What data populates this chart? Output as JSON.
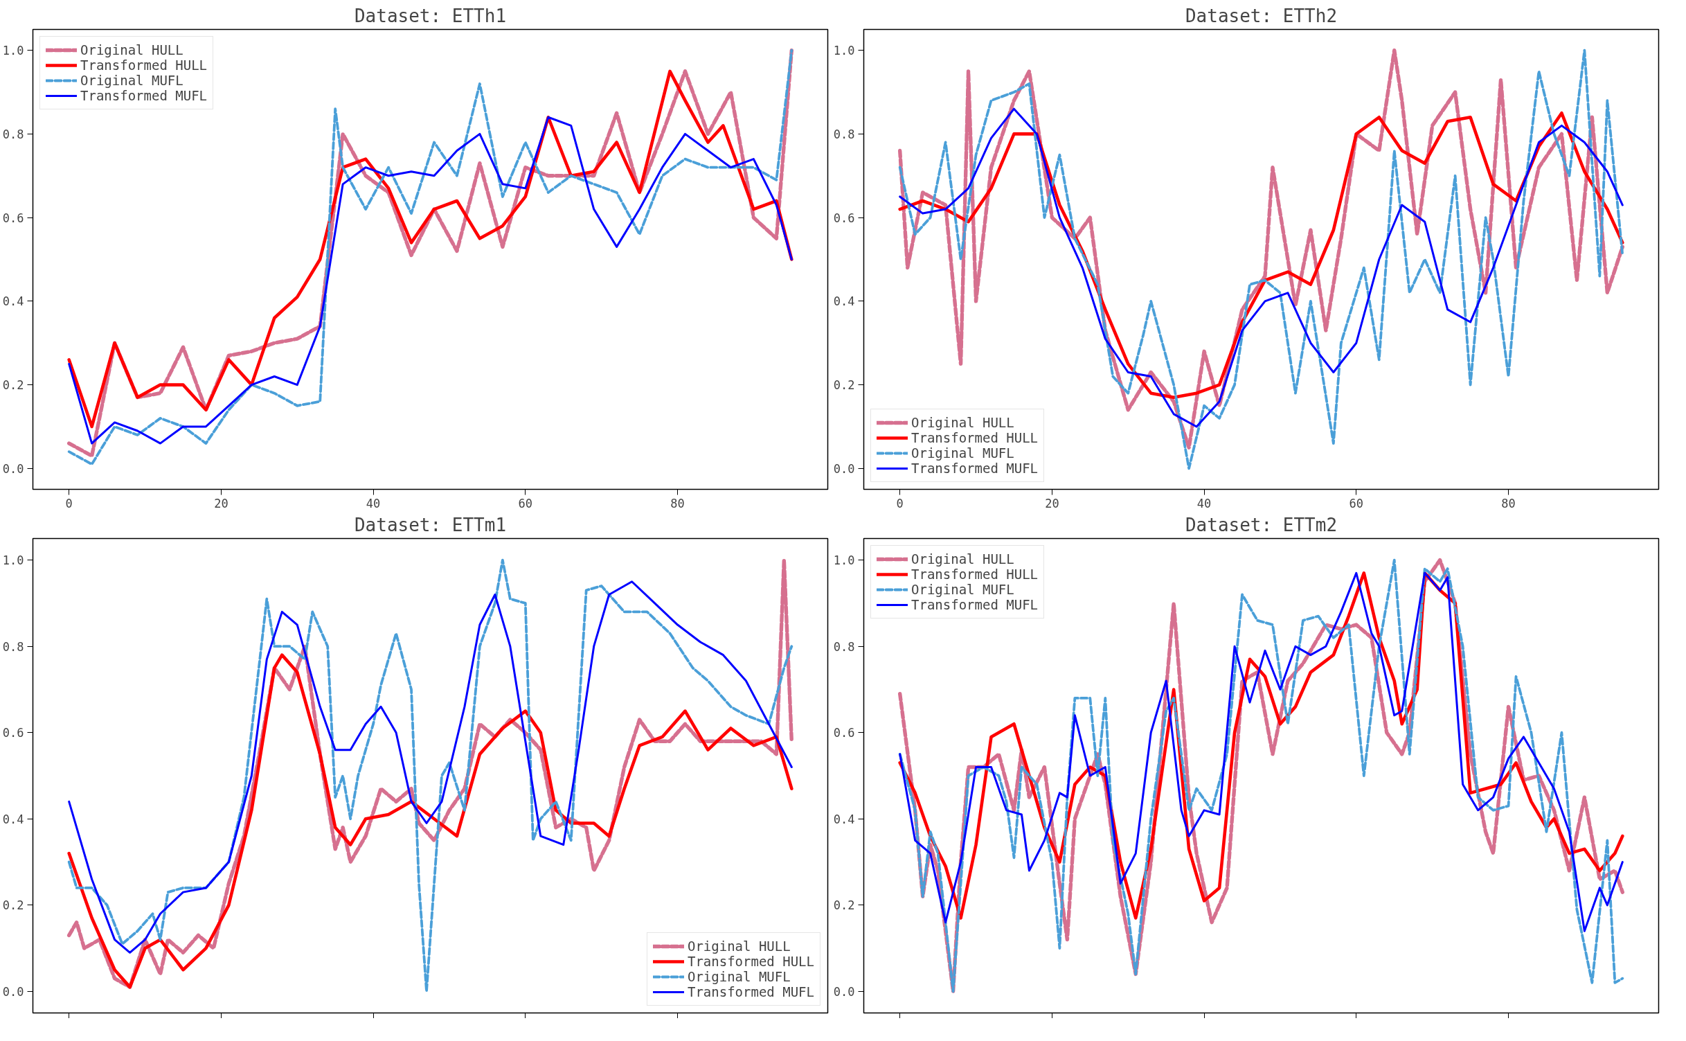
{
  "chart_data": [
    {
      "type": "line",
      "title": "Dataset: ETTh1",
      "xlim": [
        -4.75,
        99.75
      ],
      "ylim": [
        -0.05,
        1.05
      ],
      "xticks": [
        0,
        20,
        40,
        60,
        80
      ],
      "yticks": [
        {
          "value": 0,
          "label": "0.0"
        },
        {
          "value": 0.2,
          "label": "0.2"
        },
        {
          "value": 0.4,
          "label": "0.4"
        },
        {
          "value": 0.6,
          "label": "0.6"
        },
        {
          "value": 0.8,
          "label": "0.8"
        },
        {
          "value": 1,
          "label": "1.0"
        }
      ],
      "legend": "top left",
      "series": [
        {
          "name": "Original HULL",
          "color": "#d6708f",
          "line_style": "dashed",
          "x": [
            0,
            3,
            6,
            9,
            12,
            15,
            18,
            21,
            24,
            27,
            30,
            33,
            36,
            39,
            42,
            45,
            48,
            51,
            54,
            57,
            60,
            63,
            66,
            69,
            72,
            75,
            78,
            81,
            84,
            87,
            90,
            93,
            95
          ],
          "values": [
            0.06,
            0.03,
            0.3,
            0.17,
            0.18,
            0.29,
            0.14,
            0.27,
            0.28,
            0.3,
            0.31,
            0.34,
            0.8,
            0.7,
            0.66,
            0.51,
            0.62,
            0.52,
            0.73,
            0.53,
            0.72,
            0.7,
            0.7,
            0.7,
            0.85,
            0.66,
            0.8,
            0.95,
            0.8,
            0.9,
            0.6,
            0.55,
            1.0
          ]
        },
        {
          "name": "Transformed HULL",
          "color": "#ff0000",
          "line_style": "solid",
          "x": [
            0,
            3,
            6,
            9,
            12,
            15,
            18,
            21,
            24,
            27,
            30,
            33,
            36,
            39,
            42,
            45,
            48,
            51,
            54,
            57,
            60,
            63,
            66,
            69,
            72,
            75,
            79,
            81,
            84,
            86,
            90,
            93,
            95
          ],
          "values": [
            0.26,
            0.1,
            0.3,
            0.17,
            0.2,
            0.2,
            0.14,
            0.26,
            0.2,
            0.36,
            0.41,
            0.5,
            0.72,
            0.74,
            0.67,
            0.54,
            0.62,
            0.64,
            0.55,
            0.58,
            0.65,
            0.84,
            0.7,
            0.71,
            0.78,
            0.66,
            0.95,
            0.88,
            0.78,
            0.82,
            0.62,
            0.64,
            0.5
          ]
        },
        {
          "name": "Original MUFL",
          "color": "#4a9fd8",
          "line_style": "dashed",
          "x": [
            0,
            3,
            6,
            9,
            12,
            15,
            18,
            21,
            24,
            27,
            30,
            33,
            35,
            36,
            39,
            42,
            45,
            48,
            51,
            54,
            57,
            60,
            63,
            66,
            69,
            72,
            75,
            78,
            81,
            84,
            87,
            90,
            93,
            95
          ],
          "values": [
            0.04,
            0.01,
            0.1,
            0.08,
            0.12,
            0.1,
            0.06,
            0.14,
            0.2,
            0.18,
            0.15,
            0.16,
            0.86,
            0.72,
            0.62,
            0.72,
            0.61,
            0.78,
            0.7,
            0.92,
            0.65,
            0.78,
            0.66,
            0.7,
            0.68,
            0.66,
            0.56,
            0.7,
            0.74,
            0.72,
            0.72,
            0.72,
            0.69,
            1.0
          ]
        },
        {
          "name": "Transformed MUFL",
          "color": "#0000ff",
          "line_style": "solid",
          "x": [
            0,
            3,
            6,
            9,
            12,
            15,
            18,
            21,
            24,
            27,
            30,
            33,
            36,
            39,
            42,
            45,
            48,
            51,
            54,
            57,
            60,
            63,
            66,
            69,
            72,
            75,
            78,
            81,
            84,
            87,
            90,
            93,
            95
          ],
          "values": [
            0.25,
            0.06,
            0.11,
            0.09,
            0.06,
            0.1,
            0.1,
            0.15,
            0.2,
            0.22,
            0.2,
            0.34,
            0.68,
            0.72,
            0.7,
            0.71,
            0.7,
            0.76,
            0.8,
            0.68,
            0.67,
            0.84,
            0.82,
            0.62,
            0.53,
            0.62,
            0.72,
            0.8,
            0.76,
            0.72,
            0.74,
            0.63,
            0.5
          ]
        }
      ]
    },
    {
      "type": "line",
      "title": "Dataset: ETTh2",
      "xlim": [
        -4.75,
        99.75
      ],
      "ylim": [
        -0.05,
        1.05
      ],
      "xticks": [
        0,
        20,
        40,
        60,
        80
      ],
      "yticks": [
        {
          "value": 0,
          "label": "0.0"
        },
        {
          "value": 0.2,
          "label": "0.2"
        },
        {
          "value": 0.4,
          "label": "0.4"
        },
        {
          "value": 0.6,
          "label": "0.6"
        },
        {
          "value": 0.8,
          "label": "0.8"
        },
        {
          "value": 1,
          "label": "1.0"
        }
      ],
      "legend": "bottom left",
      "series": [
        {
          "name": "Original HULL",
          "color": "#d6708f",
          "line_style": "dashed",
          "x": [
            0,
            1,
            3,
            6,
            8,
            9,
            10,
            12,
            15,
            17,
            20,
            23,
            25,
            27,
            30,
            33,
            36,
            38,
            40,
            42,
            45,
            48,
            49,
            52,
            54,
            56,
            58,
            60,
            63,
            65,
            66,
            68,
            70,
            73,
            75,
            77,
            79,
            81,
            84,
            87,
            89,
            91,
            93,
            95
          ],
          "values": [
            0.76,
            0.48,
            0.66,
            0.63,
            0.25,
            0.95,
            0.4,
            0.72,
            0.88,
            0.95,
            0.6,
            0.55,
            0.6,
            0.33,
            0.14,
            0.23,
            0.16,
            0.05,
            0.28,
            0.15,
            0.38,
            0.46,
            0.72,
            0.39,
            0.57,
            0.33,
            0.55,
            0.8,
            0.76,
            1.0,
            0.88,
            0.56,
            0.82,
            0.9,
            0.62,
            0.42,
            0.93,
            0.48,
            0.72,
            0.8,
            0.45,
            0.84,
            0.42,
            0.53
          ]
        },
        {
          "name": "Transformed HULL",
          "color": "#ff0000",
          "line_style": "solid",
          "x": [
            0,
            3,
            6,
            9,
            12,
            15,
            18,
            21,
            24,
            27,
            30,
            33,
            36,
            39,
            42,
            45,
            48,
            51,
            54,
            57,
            60,
            63,
            66,
            69,
            72,
            75,
            78,
            81,
            84,
            87,
            90,
            93,
            95
          ],
          "values": [
            0.62,
            0.64,
            0.62,
            0.59,
            0.67,
            0.8,
            0.8,
            0.63,
            0.52,
            0.38,
            0.25,
            0.18,
            0.17,
            0.18,
            0.2,
            0.35,
            0.45,
            0.47,
            0.44,
            0.57,
            0.8,
            0.84,
            0.76,
            0.73,
            0.83,
            0.84,
            0.68,
            0.64,
            0.77,
            0.85,
            0.71,
            0.62,
            0.54
          ]
        },
        {
          "name": "Original MUFL",
          "color": "#4a9fd8",
          "line_style": "dashed",
          "x": [
            0,
            2,
            4,
            6,
            8,
            10,
            12,
            15,
            17,
            19,
            21,
            23,
            26,
            28,
            30,
            32,
            33,
            36,
            38,
            40,
            42,
            44,
            46,
            48,
            50,
            52,
            54,
            57,
            58,
            61,
            63,
            65,
            67,
            69,
            71,
            73,
            75,
            77,
            78,
            80,
            82,
            84,
            86,
            88,
            90,
            92,
            93,
            95
          ],
          "values": [
            0.72,
            0.56,
            0.6,
            0.78,
            0.5,
            0.75,
            0.88,
            0.9,
            0.92,
            0.6,
            0.75,
            0.55,
            0.44,
            0.22,
            0.18,
            0.32,
            0.4,
            0.2,
            0.0,
            0.15,
            0.12,
            0.2,
            0.44,
            0.45,
            0.42,
            0.18,
            0.4,
            0.06,
            0.3,
            0.48,
            0.26,
            0.76,
            0.42,
            0.5,
            0.42,
            0.7,
            0.2,
            0.6,
            0.5,
            0.22,
            0.64,
            0.95,
            0.8,
            0.7,
            1.0,
            0.46,
            0.88,
            0.51
          ]
        },
        {
          "name": "Transformed MUFL",
          "color": "#0000ff",
          "line_style": "solid",
          "x": [
            0,
            3,
            6,
            9,
            12,
            15,
            18,
            21,
            24,
            27,
            30,
            33,
            36,
            39,
            42,
            45,
            48,
            51,
            54,
            57,
            60,
            63,
            66,
            69,
            72,
            75,
            78,
            81,
            84,
            87,
            90,
            93,
            95
          ],
          "values": [
            0.65,
            0.61,
            0.62,
            0.67,
            0.79,
            0.86,
            0.8,
            0.6,
            0.48,
            0.31,
            0.23,
            0.22,
            0.13,
            0.1,
            0.16,
            0.33,
            0.4,
            0.42,
            0.3,
            0.23,
            0.3,
            0.5,
            0.63,
            0.59,
            0.38,
            0.35,
            0.48,
            0.63,
            0.78,
            0.82,
            0.78,
            0.71,
            0.63
          ]
        }
      ]
    },
    {
      "type": "line",
      "title": "Dataset: ETTm1",
      "xlim": [
        -4.75,
        99.75
      ],
      "ylim": [
        -0.05,
        1.05
      ],
      "xticks": [
        0,
        20,
        40,
        60,
        80
      ],
      "yticks": [
        {
          "value": 0,
          "label": "0.0"
        },
        {
          "value": 0.2,
          "label": "0.2"
        },
        {
          "value": 0.4,
          "label": "0.4"
        },
        {
          "value": 0.6,
          "label": "0.6"
        },
        {
          "value": 0.8,
          "label": "0.8"
        },
        {
          "value": 1,
          "label": "1.0"
        }
      ],
      "legend": "bottom right",
      "tick_labels": "y",
      "series": [
        {
          "name": "Original HULL",
          "color": "#d6708f",
          "line_style": "dashed",
          "x": [
            0,
            1,
            2,
            4,
            6,
            8,
            10,
            12,
            13,
            15,
            17,
            19,
            21,
            23,
            25,
            27,
            29,
            31,
            33,
            35,
            36,
            37,
            39,
            41,
            43,
            45,
            46,
            48,
            50,
            52,
            54,
            56,
            58,
            60,
            62,
            64,
            66,
            68,
            69,
            71,
            73,
            75,
            77,
            79,
            81,
            83,
            86,
            89,
            91,
            93,
            94,
            95
          ],
          "values": [
            0.13,
            0.16,
            0.1,
            0.12,
            0.03,
            0.01,
            0.12,
            0.04,
            0.12,
            0.09,
            0.13,
            0.1,
            0.25,
            0.36,
            0.55,
            0.75,
            0.7,
            0.8,
            0.55,
            0.33,
            0.38,
            0.3,
            0.36,
            0.47,
            0.44,
            0.47,
            0.39,
            0.35,
            0.42,
            0.47,
            0.62,
            0.59,
            0.63,
            0.6,
            0.56,
            0.38,
            0.4,
            0.38,
            0.28,
            0.35,
            0.52,
            0.63,
            0.58,
            0.58,
            0.62,
            0.58,
            0.58,
            0.58,
            0.58,
            0.55,
            1.0,
            0.58
          ]
        },
        {
          "name": "Transformed HULL",
          "color": "#ff0000",
          "line_style": "solid",
          "x": [
            0,
            3,
            6,
            8,
            10,
            12,
            15,
            18,
            21,
            24,
            27,
            28,
            30,
            33,
            35,
            37,
            39,
            42,
            45,
            48,
            51,
            54,
            57,
            60,
            62,
            64,
            66,
            69,
            71,
            73,
            75,
            78,
            81,
            84,
            87,
            90,
            93,
            95
          ],
          "values": [
            0.32,
            0.17,
            0.05,
            0.01,
            0.1,
            0.12,
            0.05,
            0.1,
            0.2,
            0.42,
            0.75,
            0.78,
            0.74,
            0.55,
            0.38,
            0.34,
            0.4,
            0.41,
            0.44,
            0.4,
            0.36,
            0.55,
            0.61,
            0.65,
            0.6,
            0.42,
            0.39,
            0.39,
            0.36,
            0.47,
            0.57,
            0.59,
            0.65,
            0.56,
            0.61,
            0.57,
            0.59,
            0.47
          ]
        },
        {
          "name": "Original MUFL",
          "color": "#4a9fd8",
          "line_style": "dashed",
          "x": [
            0,
            1,
            3,
            5,
            7,
            9,
            11,
            12,
            13,
            15,
            18,
            21,
            23,
            26,
            27,
            29,
            31,
            32,
            34,
            35,
            36,
            37,
            38,
            40,
            41,
            43,
            45,
            46,
            47,
            49,
            50,
            52,
            54,
            56,
            57,
            58,
            60,
            61,
            62,
            64,
            66,
            68,
            70,
            73,
            76,
            79,
            82,
            84,
            87,
            89,
            92,
            94,
            95
          ],
          "values": [
            0.3,
            0.24,
            0.24,
            0.2,
            0.11,
            0.14,
            0.18,
            0.12,
            0.23,
            0.24,
            0.24,
            0.3,
            0.45,
            0.91,
            0.8,
            0.8,
            0.77,
            0.88,
            0.8,
            0.45,
            0.5,
            0.4,
            0.5,
            0.62,
            0.71,
            0.83,
            0.7,
            0.25,
            0.0,
            0.5,
            0.53,
            0.42,
            0.8,
            0.9,
            1.0,
            0.91,
            0.9,
            0.35,
            0.4,
            0.44,
            0.35,
            0.93,
            0.94,
            0.88,
            0.88,
            0.83,
            0.75,
            0.72,
            0.66,
            0.64,
            0.62,
            0.75,
            0.8
          ]
        },
        {
          "name": "Transformed MUFL",
          "color": "#0000ff",
          "line_style": "solid",
          "x": [
            0,
            3,
            6,
            8,
            10,
            12,
            15,
            18,
            21,
            24,
            26,
            28,
            30,
            33,
            35,
            37,
            39,
            41,
            43,
            45,
            47,
            49,
            52,
            54,
            56,
            58,
            60,
            62,
            65,
            67,
            69,
            71,
            74,
            77,
            80,
            83,
            86,
            89,
            92,
            95
          ],
          "values": [
            0.44,
            0.26,
            0.12,
            0.09,
            0.12,
            0.18,
            0.23,
            0.24,
            0.3,
            0.5,
            0.77,
            0.88,
            0.85,
            0.66,
            0.56,
            0.56,
            0.62,
            0.66,
            0.6,
            0.44,
            0.39,
            0.44,
            0.66,
            0.85,
            0.92,
            0.8,
            0.58,
            0.36,
            0.34,
            0.56,
            0.8,
            0.92,
            0.95,
            0.9,
            0.85,
            0.81,
            0.78,
            0.72,
            0.62,
            0.52
          ]
        }
      ]
    },
    {
      "type": "line",
      "title": "Dataset: ETTm2",
      "xlim": [
        -4.75,
        99.75
      ],
      "ylim": [
        -0.05,
        1.05
      ],
      "xticks": [
        0,
        20,
        40,
        60,
        80
      ],
      "yticks": [
        {
          "value": 0,
          "label": "0.0"
        },
        {
          "value": 0.2,
          "label": "0.2"
        },
        {
          "value": 0.4,
          "label": "0.4"
        },
        {
          "value": 0.6,
          "label": "0.6"
        },
        {
          "value": 0.8,
          "label": "0.8"
        },
        {
          "value": 1,
          "label": "1.0"
        }
      ],
      "legend": "top left",
      "tick_labels": "y",
      "series": [
        {
          "name": "Original HULL",
          "color": "#d6708f",
          "line_style": "dashed",
          "x": [
            0,
            2,
            3,
            4,
            5,
            7,
            8,
            9,
            11,
            13,
            15,
            16,
            17,
            19,
            21,
            22,
            23,
            24,
            26,
            27,
            29,
            31,
            33,
            35,
            36,
            38,
            39,
            41,
            43,
            45,
            47,
            49,
            51,
            53,
            56,
            58,
            60,
            62,
            64,
            66,
            67,
            69,
            71,
            73,
            75,
            77,
            78,
            80,
            82,
            84,
            86,
            88,
            90,
            92,
            94,
            95
          ],
          "values": [
            0.69,
            0.42,
            0.22,
            0.34,
            0.28,
            0.0,
            0.3,
            0.52,
            0.52,
            0.55,
            0.42,
            0.56,
            0.45,
            0.52,
            0.25,
            0.12,
            0.4,
            0.45,
            0.55,
            0.48,
            0.22,
            0.04,
            0.3,
            0.7,
            0.9,
            0.45,
            0.32,
            0.16,
            0.24,
            0.72,
            0.74,
            0.55,
            0.72,
            0.76,
            0.85,
            0.84,
            0.85,
            0.82,
            0.6,
            0.55,
            0.6,
            0.95,
            1.0,
            0.9,
            0.55,
            0.37,
            0.32,
            0.66,
            0.49,
            0.5,
            0.42,
            0.28,
            0.45,
            0.26,
            0.28,
            0.23
          ]
        },
        {
          "name": "Transformed HULL",
          "color": "#ff0000",
          "line_style": "solid",
          "x": [
            0,
            2,
            4,
            6,
            8,
            10,
            12,
            14,
            15,
            17,
            19,
            21,
            23,
            25,
            27,
            29,
            31,
            33,
            36,
            38,
            40,
            42,
            44,
            46,
            48,
            50,
            52,
            54,
            57,
            59,
            61,
            63,
            65,
            66,
            68,
            69,
            71,
            73,
            75,
            77,
            79,
            81,
            83,
            85,
            86,
            88,
            90,
            92,
            94,
            95
          ],
          "values": [
            0.53,
            0.46,
            0.36,
            0.29,
            0.17,
            0.34,
            0.59,
            0.61,
            0.62,
            0.5,
            0.38,
            0.3,
            0.48,
            0.52,
            0.5,
            0.3,
            0.17,
            0.33,
            0.7,
            0.33,
            0.21,
            0.24,
            0.6,
            0.77,
            0.73,
            0.62,
            0.66,
            0.74,
            0.78,
            0.87,
            0.97,
            0.82,
            0.72,
            0.62,
            0.7,
            0.97,
            0.93,
            0.9,
            0.46,
            0.47,
            0.48,
            0.53,
            0.44,
            0.38,
            0.4,
            0.32,
            0.33,
            0.28,
            0.32,
            0.36
          ]
        },
        {
          "name": "Original MUFL",
          "color": "#4a9fd8",
          "line_style": "dashed",
          "x": [
            0,
            2,
            3,
            4,
            5,
            7,
            9,
            11,
            13,
            14,
            15,
            16,
            18,
            20,
            21,
            22,
            23,
            25,
            26,
            27,
            28,
            30,
            31,
            33,
            35,
            36,
            38,
            39,
            41,
            43,
            45,
            47,
            49,
            51,
            53,
            55,
            57,
            59,
            61,
            63,
            65,
            67,
            69,
            71,
            72,
            74,
            76,
            78,
            80,
            81,
            83,
            85,
            87,
            89,
            91,
            93,
            94,
            95
          ],
          "values": [
            0.55,
            0.42,
            0.22,
            0.37,
            0.32,
            0.0,
            0.5,
            0.52,
            0.5,
            0.44,
            0.31,
            0.52,
            0.48,
            0.3,
            0.1,
            0.45,
            0.68,
            0.68,
            0.5,
            0.68,
            0.35,
            0.18,
            0.04,
            0.4,
            0.65,
            0.68,
            0.42,
            0.47,
            0.42,
            0.55,
            0.92,
            0.86,
            0.85,
            0.62,
            0.86,
            0.87,
            0.82,
            0.85,
            0.5,
            0.8,
            1.0,
            0.55,
            0.98,
            0.95,
            0.98,
            0.8,
            0.45,
            0.42,
            0.43,
            0.73,
            0.6,
            0.37,
            0.6,
            0.19,
            0.02,
            0.35,
            0.02,
            0.03
          ]
        },
        {
          "name": "Transformed MUFL",
          "color": "#0000ff",
          "line_style": "solid",
          "x": [
            0,
            2,
            4,
            6,
            8,
            10,
            12,
            14,
            16,
            17,
            19,
            21,
            22,
            23,
            25,
            27,
            29,
            31,
            33,
            35,
            37,
            38,
            40,
            42,
            44,
            46,
            48,
            50,
            52,
            54,
            56,
            58,
            60,
            62,
            63,
            65,
            66,
            69,
            71,
            72,
            74,
            76,
            78,
            80,
            82,
            84,
            86,
            88,
            90,
            92,
            93,
            95
          ],
          "values": [
            0.55,
            0.35,
            0.32,
            0.16,
            0.3,
            0.52,
            0.52,
            0.42,
            0.41,
            0.28,
            0.35,
            0.46,
            0.45,
            0.64,
            0.5,
            0.52,
            0.25,
            0.32,
            0.6,
            0.72,
            0.42,
            0.36,
            0.42,
            0.41,
            0.8,
            0.67,
            0.79,
            0.7,
            0.8,
            0.78,
            0.8,
            0.88,
            0.97,
            0.83,
            0.8,
            0.64,
            0.65,
            0.97,
            0.93,
            0.96,
            0.48,
            0.42,
            0.45,
            0.54,
            0.59,
            0.53,
            0.47,
            0.37,
            0.14,
            0.24,
            0.2,
            0.3
          ]
        }
      ]
    }
  ]
}
